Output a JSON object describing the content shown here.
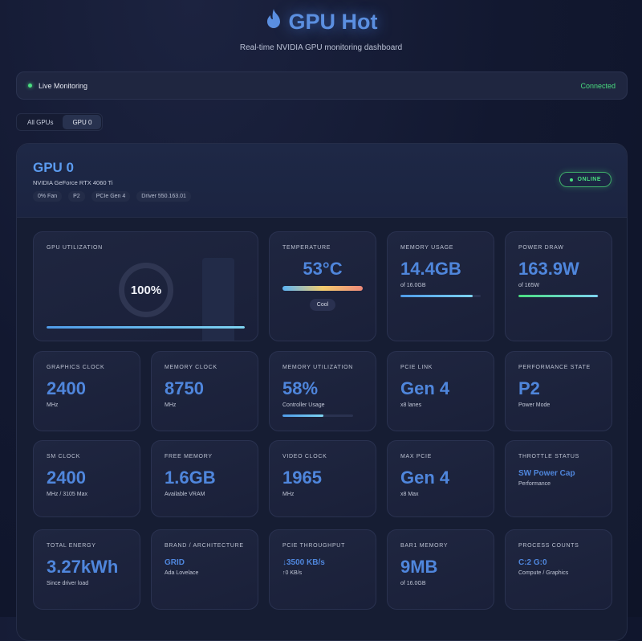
{
  "header": {
    "title": "GPU Hot",
    "subtitle": "Real-time NVIDIA GPU monitoring dashboard",
    "icon": "flame-icon"
  },
  "status": {
    "label": "Live Monitoring",
    "connection": "Connected"
  },
  "tabs": [
    {
      "label": "All GPUs"
    },
    {
      "label": "GPU 0",
      "active": true
    }
  ],
  "gpu": {
    "name": "GPU 0",
    "model": "NVIDIA GeForce RTX 4060 Ti",
    "chips": [
      "0%  Fan",
      "P2",
      "PCIe Gen  4",
      "Driver 550.163.01"
    ],
    "status": "ONLINE"
  },
  "metrics": {
    "util": {
      "label": "GPU UTILIZATION",
      "value": "100%",
      "percent": 100
    },
    "temp": {
      "label": "TEMPERATURE",
      "value": "53°C",
      "badge": "Cool"
    },
    "mem": {
      "label": "MEMORY USAGE",
      "value": "14.4GB",
      "sub": "of 16.0GB",
      "percent": 90
    },
    "power": {
      "label": "POWER DRAW",
      "value": "163.9W",
      "sub": "of 165W",
      "percent": 99
    },
    "gclk": {
      "label": "GRAPHICS CLOCK",
      "value": "2400",
      "sub": "MHz"
    },
    "mclk": {
      "label": "MEMORY CLOCK",
      "value": "8750",
      "sub": "MHz"
    },
    "mutil": {
      "label": "MEMORY UTILIZATION",
      "value": "58%",
      "sub": "Controller Usage",
      "percent": 58
    },
    "pcie": {
      "label": "PCIE LINK",
      "value": "Gen 4",
      "sub": "x8 lanes"
    },
    "pstate": {
      "label": "PERFORMANCE STATE",
      "value": "P2",
      "sub": "Power Mode"
    },
    "smclk": {
      "label": "SM CLOCK",
      "value": "2400",
      "sub": "MHz / 3105 Max"
    },
    "free": {
      "label": "FREE MEMORY",
      "value": "1.6GB",
      "sub": "Available VRAM"
    },
    "vclk": {
      "label": "VIDEO CLOCK",
      "value": "1965",
      "sub": "MHz"
    },
    "maxpcie": {
      "label": "MAX PCIE",
      "value": "Gen 4",
      "sub": "x8 Max"
    },
    "throttle": {
      "label": "THROTTLE STATUS",
      "value": "SW Power Cap",
      "sub": "Performance"
    },
    "energy": {
      "label": "TOTAL ENERGY",
      "value": "3.27kWh",
      "sub": "Since driver load"
    },
    "brand": {
      "label": "BRAND / ARCHITECTURE",
      "value": "GRID",
      "sub": "Ada Lovelace"
    },
    "tput": {
      "label": "PCIE THROUGHPUT",
      "value": "↓3500 KB/s",
      "sub": "↑0 KB/s"
    },
    "bar1": {
      "label": "BAR1 MEMORY",
      "value": "9MB",
      "sub": "of 16.0GB"
    },
    "proc": {
      "label": "PROCESS COUNTS",
      "value": "C:2 G:0",
      "sub": "Compute / Graphics"
    }
  }
}
